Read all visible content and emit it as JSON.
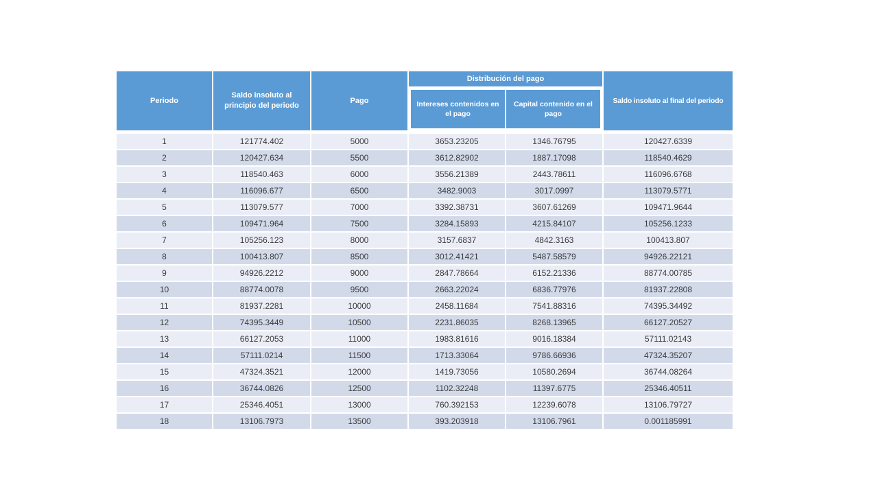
{
  "table": {
    "headers": {
      "periodo": "Periodo",
      "saldo_inicial": "Saldo insoluto al principio del periodo",
      "pago": "Pago",
      "distribucion": "Distribución del pago",
      "intereses": "Intereses contenidos en el pago",
      "capital": "Capital contenido en el pago",
      "saldo_final": "Saldo insoluto al final del periodo"
    },
    "rows": [
      [
        "1",
        "121774.402",
        "5000",
        "3653.23205",
        "1346.76795",
        "120427.6339"
      ],
      [
        "2",
        "120427.634",
        "5500",
        "3612.82902",
        "1887.17098",
        "118540.4629"
      ],
      [
        "3",
        "118540.463",
        "6000",
        "3556.21389",
        "2443.78611",
        "116096.6768"
      ],
      [
        "4",
        "116096.677",
        "6500",
        "3482.9003",
        "3017.0997",
        "113079.5771"
      ],
      [
        "5",
        "113079.577",
        "7000",
        "3392.38731",
        "3607.61269",
        "109471.9644"
      ],
      [
        "6",
        "109471.964",
        "7500",
        "3284.15893",
        "4215.84107",
        "105256.1233"
      ],
      [
        "7",
        "105256.123",
        "8000",
        "3157.6837",
        "4842.3163",
        "100413.807"
      ],
      [
        "8",
        "100413.807",
        "8500",
        "3012.41421",
        "5487.58579",
        "94926.22121"
      ],
      [
        "9",
        "94926.2212",
        "9000",
        "2847.78664",
        "6152.21336",
        "88774.00785"
      ],
      [
        "10",
        "88774.0078",
        "9500",
        "2663.22024",
        "6836.77976",
        "81937.22808"
      ],
      [
        "11",
        "81937.2281",
        "10000",
        "2458.11684",
        "7541.88316",
        "74395.34492"
      ],
      [
        "12",
        "74395.3449",
        "10500",
        "2231.86035",
        "8268.13965",
        "66127.20527"
      ],
      [
        "13",
        "66127.2053",
        "11000",
        "1983.81616",
        "9016.18384",
        "57111.02143"
      ],
      [
        "14",
        "57111.0214",
        "11500",
        "1713.33064",
        "9786.66936",
        "47324.35207"
      ],
      [
        "15",
        "47324.3521",
        "12000",
        "1419.73056",
        "10580.2694",
        "36744.08264"
      ],
      [
        "16",
        "36744.0826",
        "12500",
        "1102.32248",
        "11397.6775",
        "25346.40511"
      ],
      [
        "17",
        "25346.4051",
        "13000",
        "760.392153",
        "12239.6078",
        "13106.79727"
      ],
      [
        "18",
        "13106.7973",
        "13500",
        "393.203918",
        "13106.7961",
        "0.001185991"
      ]
    ]
  },
  "colors": {
    "header_bg": "#5B9BD5",
    "header_text": "#FFFFFF",
    "row_odd_bg": "#EAEDF6",
    "row_even_bg": "#D2DAEA",
    "body_text": "#3B3B3B",
    "page_bg": "#FFFFFF"
  }
}
